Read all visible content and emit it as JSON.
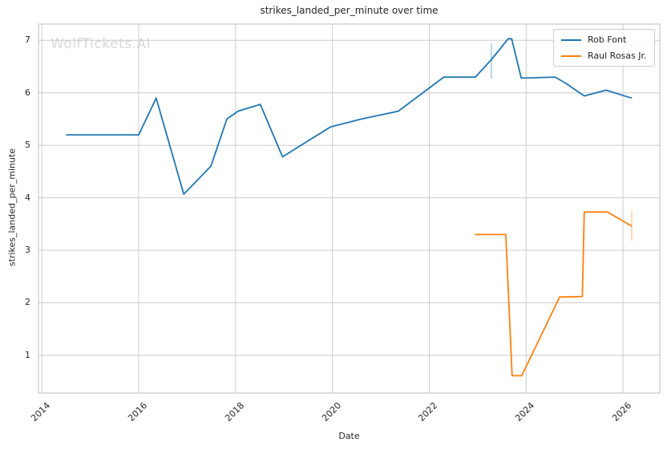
{
  "chart_data": {
    "type": "line",
    "title": "strikes_landed_per_minute over time",
    "xlabel": "Date",
    "ylabel": "strikes_landed_per_minute",
    "watermark": "WolfTickets.AI",
    "grid": true,
    "legend_position": "upper-right",
    "xlim": [
      2013.93,
      2026.76
    ],
    "ylim": [
      0.28,
      7.31
    ],
    "x_ticks": [
      2014,
      2016,
      2018,
      2020,
      2022,
      2024,
      2026
    ],
    "y_ticks": [
      1,
      2,
      3,
      4,
      5,
      6,
      7
    ],
    "colors": {
      "grid": "#cccccc",
      "frame": "#c8c8c8",
      "text": "#262626",
      "watermark": "#d9d9d9",
      "rob_font": "#1f77b4",
      "raul_rosas_jr": "#ff7f0e"
    },
    "series": [
      {
        "name": "Rob Font",
        "color": "#1f77b4",
        "x": [
          2014.5,
          2016.0,
          2016.36,
          2016.93,
          2017.49,
          2017.82,
          2018.05,
          2018.51,
          2018.97,
          2019.96,
          2020.6,
          2021.36,
          2022.3,
          2022.95,
          2023.28,
          2023.63,
          2023.7,
          2023.9,
          2024.6,
          2024.82,
          2025.2,
          2025.65,
          2026.18
        ],
        "y": [
          5.2,
          5.2,
          5.9,
          4.07,
          4.6,
          5.5,
          5.65,
          5.78,
          4.78,
          5.35,
          5.5,
          5.65,
          6.3,
          6.3,
          6.63,
          7.03,
          7.03,
          6.28,
          6.3,
          6.18,
          5.94,
          6.05,
          5.9
        ],
        "error_bars": [
          {
            "x": 2023.28,
            "low": 6.27,
            "high": 6.94
          }
        ]
      },
      {
        "name": "Raul Rosas Jr.",
        "color": "#ff7f0e",
        "x": [
          2022.94,
          2023.58,
          2023.71,
          2023.91,
          2024.69,
          2025.16,
          2025.2,
          2025.68,
          2026.18
        ],
        "y": [
          3.3,
          3.3,
          0.61,
          0.61,
          2.11,
          2.12,
          3.73,
          3.73,
          3.46
        ],
        "error_bars": [
          {
            "x": 2026.18,
            "low": 3.18,
            "high": 3.75
          }
        ]
      }
    ]
  }
}
